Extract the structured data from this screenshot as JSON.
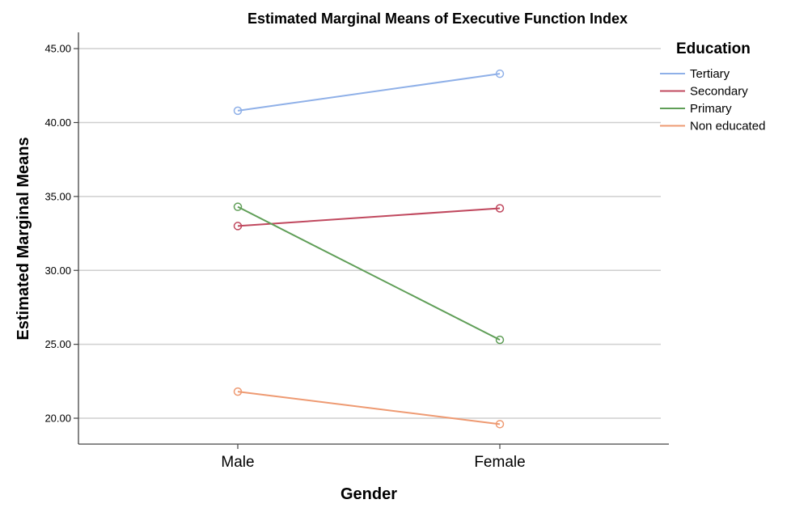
{
  "chart_data": {
    "type": "line",
    "title": "Estimated Marginal Means of Executive Function Index",
    "xlabel": "Gender",
    "ylabel": "Estimated Marginal Means",
    "categories": [
      "Male",
      "Female"
    ],
    "ylim": [
      18.25,
      46.1
    ],
    "yticks": [
      "20.00",
      "25.00",
      "30.00",
      "35.00",
      "40.00",
      "45.00"
    ],
    "ytick_values": [
      20,
      25,
      30,
      35,
      40,
      45
    ],
    "grid": "horizontal",
    "legend": {
      "title": "Education",
      "placement": "right"
    },
    "series": [
      {
        "name": "Tertiary",
        "color": "#8fb0e8",
        "values": [
          40.8,
          43.3
        ]
      },
      {
        "name": "Secondary",
        "color": "#c0485e",
        "values": [
          33.0,
          34.2
        ]
      },
      {
        "name": "Primary",
        "color": "#5f9e57",
        "values": [
          34.3,
          25.3
        ]
      },
      {
        "name": "Non educated",
        "color": "#ee9a72",
        "values": [
          21.8,
          19.6
        ]
      }
    ]
  }
}
